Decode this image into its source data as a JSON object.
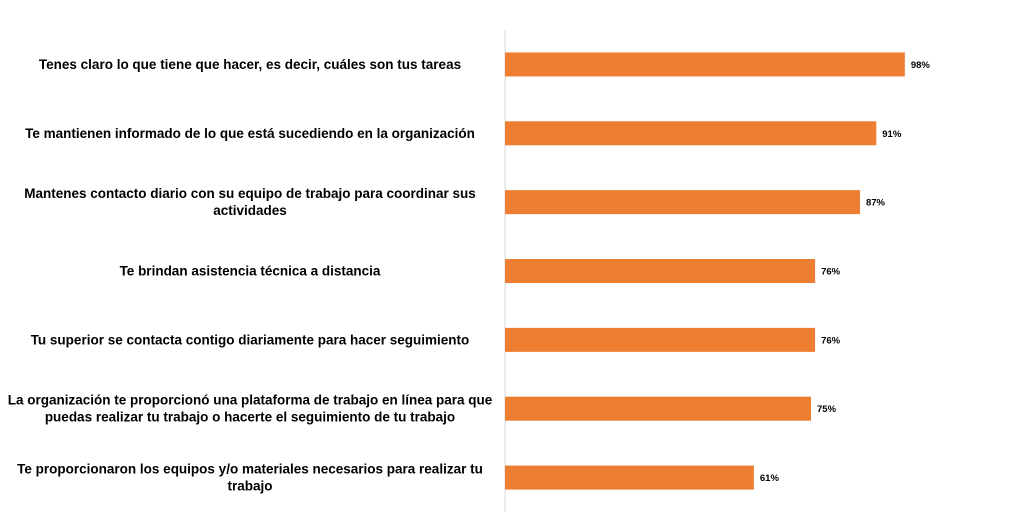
{
  "chart_data": {
    "type": "bar",
    "orientation": "horizontal",
    "title": "",
    "xlabel": "",
    "ylabel": "",
    "xlim": [
      0,
      100
    ],
    "grid": false,
    "legend": "none",
    "bar_color": "#ED7D31",
    "axis_color": "#D9D9D9",
    "categories": [
      [
        "Tenes claro lo que tiene que hacer, es decir, cuáles son tus tareas"
      ],
      [
        "Te mantienen informado de lo que está sucediendo en la organización"
      ],
      [
        "Mantenes contacto diario con su equipo de trabajo para coordinar sus",
        "actividades"
      ],
      [
        "Te brindan asistencia técnica a distancia"
      ],
      [
        "Tu superior se contacta contigo diariamente para hacer seguimiento"
      ],
      [
        "La organización te proporcionó una plataforma de trabajo en línea para que",
        "puedas realizar tu trabajo o hacerte el seguimiento de tu trabajo"
      ],
      [
        "Te proporcionaron los equipos y/o materiales necesarios para realizar tu",
        "trabajo"
      ]
    ],
    "values": [
      98,
      91,
      87,
      76,
      76,
      75,
      61
    ],
    "value_labels": [
      "98%",
      "91%",
      "87%",
      "76%",
      "76%",
      "75%",
      "61%"
    ]
  }
}
